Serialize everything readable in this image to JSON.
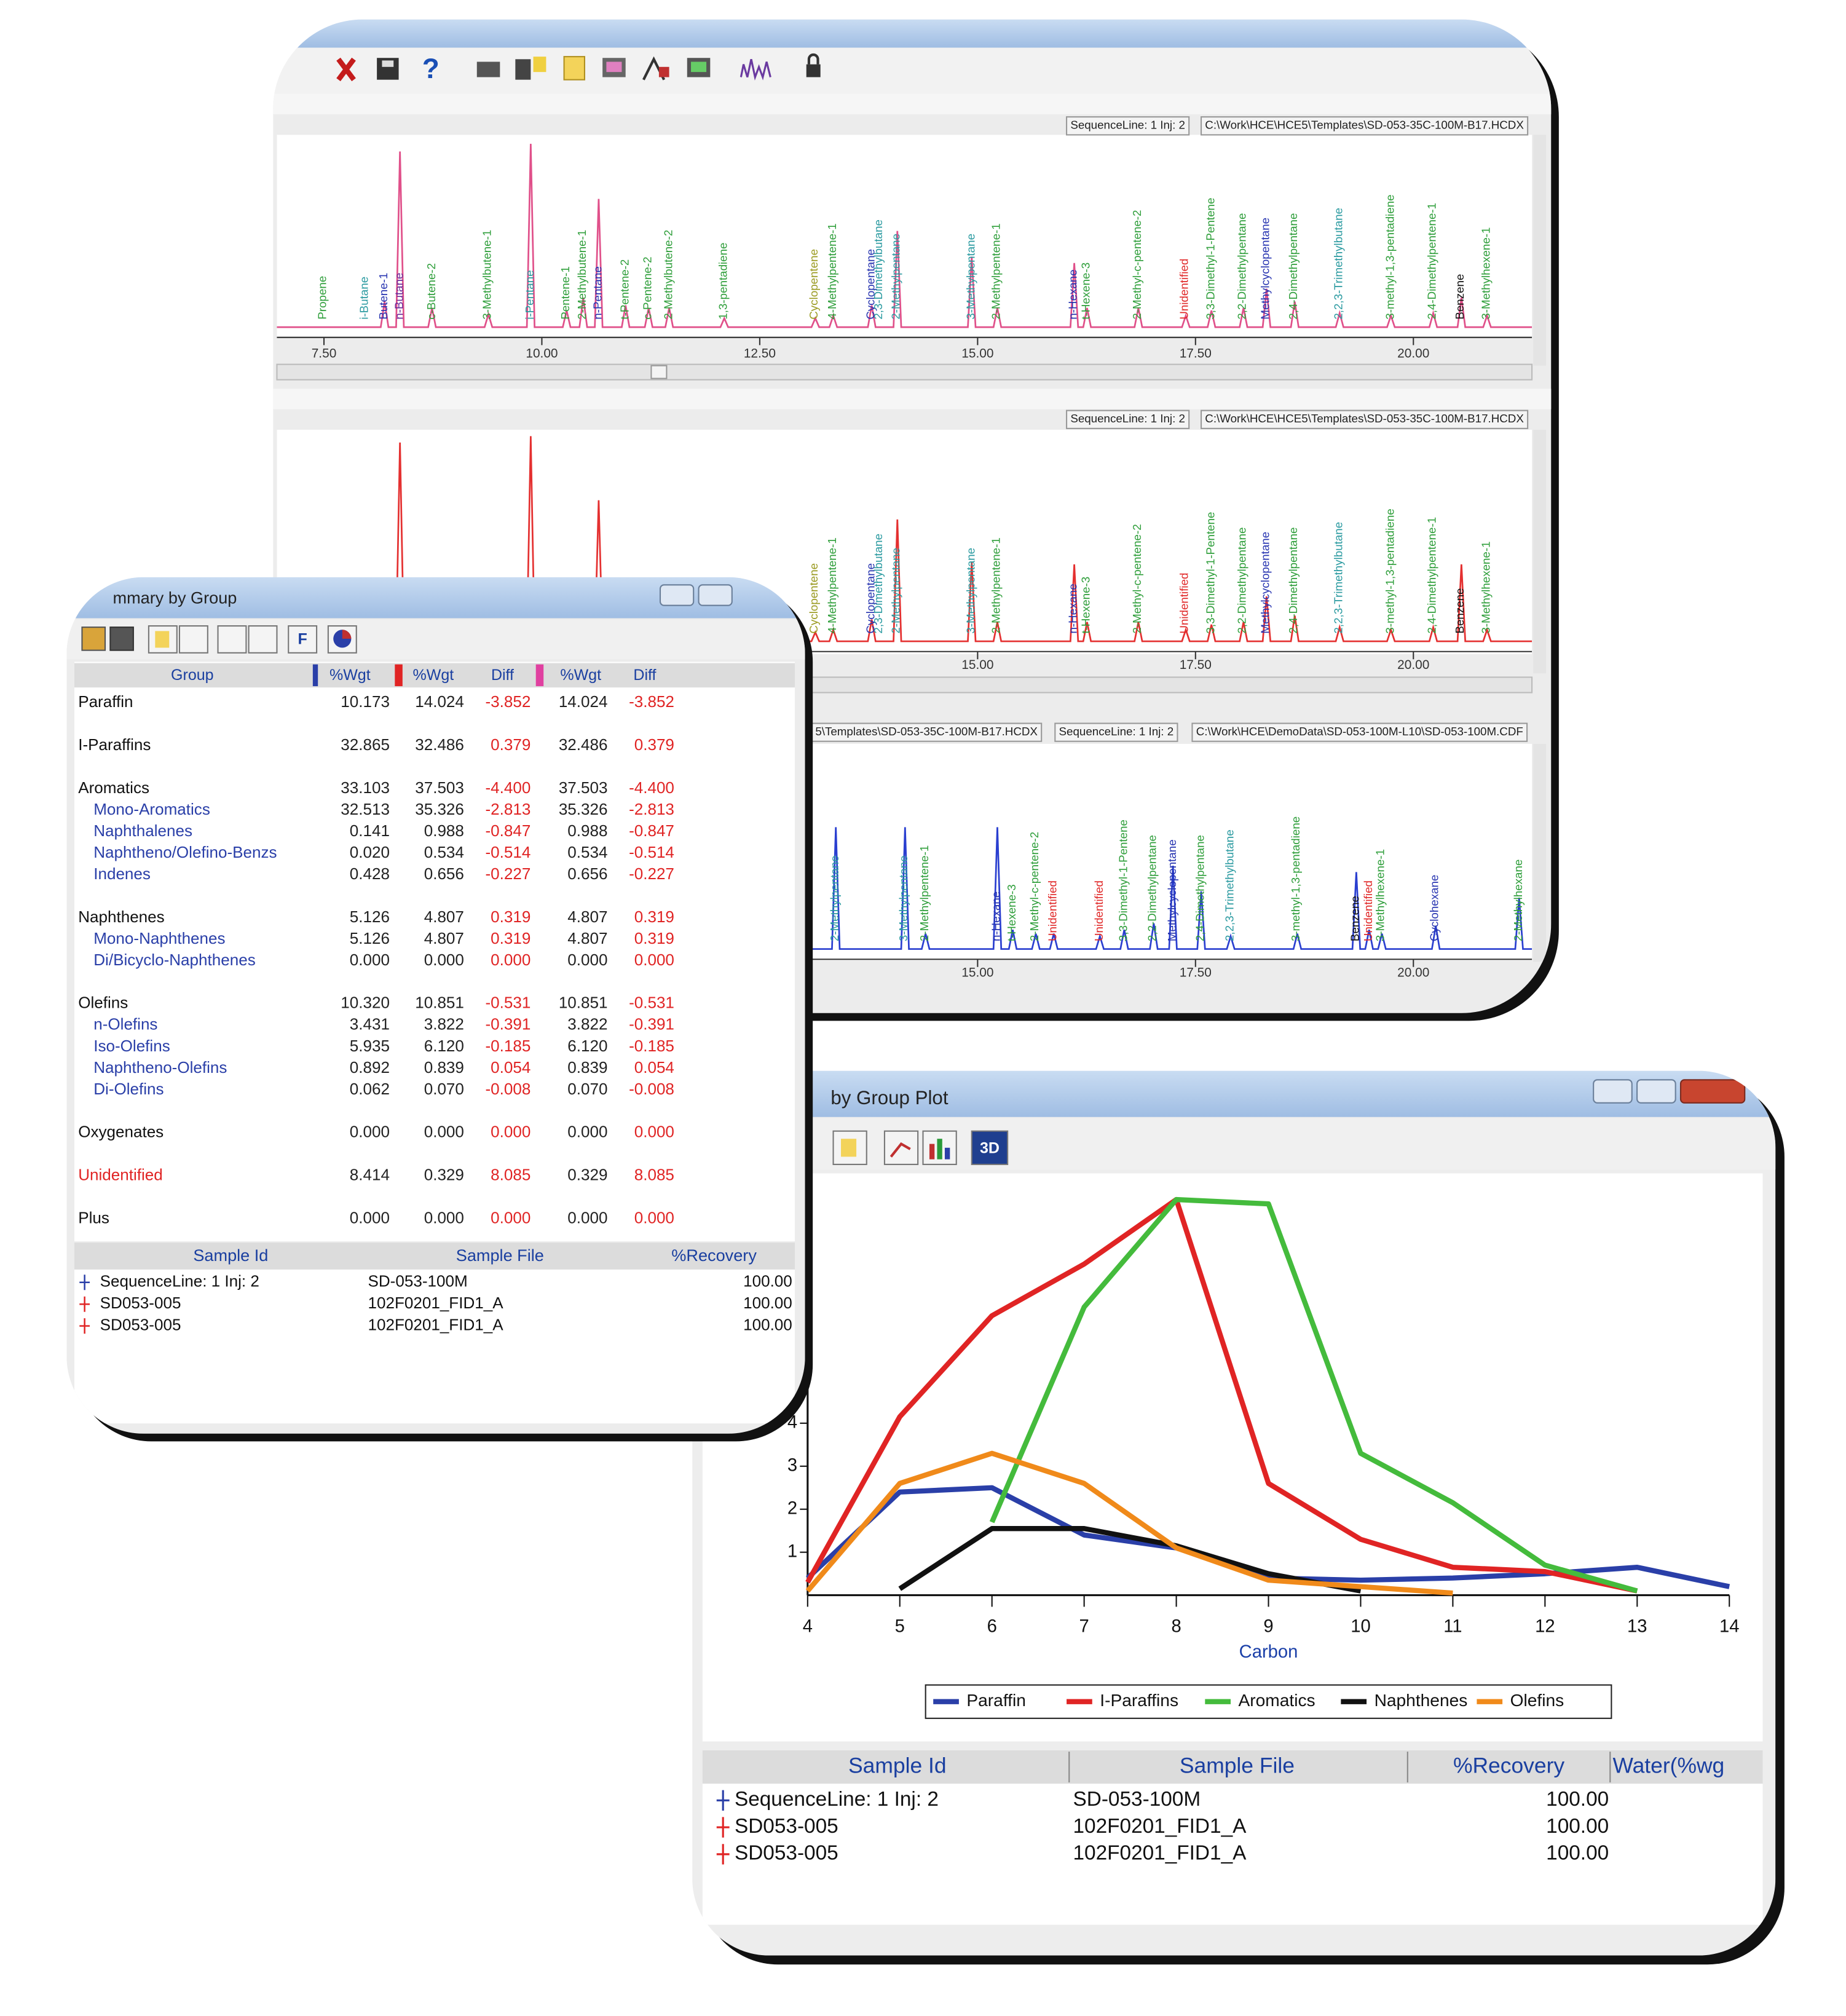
{
  "chromatogram_window": {
    "panels": [
      {
        "header": [
          "SequenceLine: 1  Inj: 2",
          "C:\\Work\\HCE\\HCE5\\Templates\\SD-053-35C-100M-B17.HCDX"
        ],
        "xlim": [
          6.96,
          21.36
        ],
        "xticks": [
          {
            "value": 7.5,
            "label": "7.50"
          },
          {
            "value": 10,
            "label": "10.00"
          },
          {
            "value": 12.5,
            "label": "12.50"
          },
          {
            "value": 15,
            "label": "15.00"
          },
          {
            "value": 17.5,
            "label": "17.50"
          },
          {
            "value": 20,
            "label": "20.00"
          }
        ],
        "peaks": [
          {
            "label": "Propene",
            "rt": 7.49,
            "color": "#2e9e3a"
          },
          {
            "label": "i-Butane",
            "rt": 7.97,
            "color": "#2a9aa0"
          },
          {
            "label": "Butene-1",
            "rt": 8.19,
            "color": "#2633b0"
          },
          {
            "label": "n-Butane",
            "rt": 8.37,
            "color": "#6a2a9a"
          },
          {
            "label": "c-Butene-2",
            "rt": 8.74,
            "color": "#2e9e3a"
          },
          {
            "label": "3-Methylbutene-1",
            "rt": 9.38,
            "color": "#2e9e3a"
          },
          {
            "label": "i-Pentane",
            "rt": 9.87,
            "color": "#2a9aa0"
          },
          {
            "label": "Pentene-1",
            "rt": 10.28,
            "color": "#2e9e3a"
          },
          {
            "label": "2-Methylbutene-1",
            "rt": 10.47,
            "color": "#2e9e3a"
          },
          {
            "label": "n-Pentane",
            "rt": 10.65,
            "color": "#2633b0"
          },
          {
            "label": "t-Pentene-2",
            "rt": 10.96,
            "color": "#2e9e3a"
          },
          {
            "label": "c-Pentene-2",
            "rt": 11.22,
            "color": "#2e9e3a"
          },
          {
            "label": "2-Methylbutene-2",
            "rt": 11.46,
            "color": "#2e9e3a"
          },
          {
            "label": "1,3-pentadiene",
            "rt": 12.09,
            "color": "#2e9e3a"
          },
          {
            "label": "Cyclopentene",
            "rt": 13.13,
            "color": "#9a9a20"
          },
          {
            "label": "4-Methylpentene-1",
            "rt": 13.34,
            "color": "#2e9e3a"
          },
          {
            "label": "Cyclopentane",
            "rt": 13.78,
            "color": "#2633b0"
          },
          {
            "label": "2,3-Dimethylbutane",
            "rt": 13.87,
            "color": "#2a9aa0"
          },
          {
            "label": "2-Methylpentane",
            "rt": 14.07,
            "color": "#2a9aa0"
          },
          {
            "label": "3-Methylpentane",
            "rt": 14.93,
            "color": "#2a9aa0"
          },
          {
            "label": "2-Methylpentene-1",
            "rt": 15.22,
            "color": "#2e9e3a"
          },
          {
            "label": "n-Hexane",
            "rt": 16.1,
            "color": "#2633b0"
          },
          {
            "label": "t-Hexene-3",
            "rt": 16.25,
            "color": "#2e9e3a"
          },
          {
            "label": "2-Methyl-c-pentene-2",
            "rt": 16.84,
            "color": "#2e9e3a"
          },
          {
            "label": "Unidentified",
            "rt": 17.38,
            "color": "#e02828"
          },
          {
            "label": "3,3-Dimethyl-1-Pentene",
            "rt": 17.68,
            "color": "#2e9e3a"
          },
          {
            "label": "2,2-Dimethylpentane",
            "rt": 18.04,
            "color": "#2e9e3a"
          },
          {
            "label": "Methylcyclopentane",
            "rt": 18.31,
            "color": "#2633b0"
          },
          {
            "label": "2,4-Dimethylpentane",
            "rt": 18.63,
            "color": "#2e9e3a"
          },
          {
            "label": "2,2,3-Trimethylbutane",
            "rt": 19.15,
            "color": "#2a9aa0"
          },
          {
            "label": "3-methyl-1,3-pentadiene",
            "rt": 19.74,
            "color": "#2e9e3a"
          },
          {
            "label": "2,4-Dimethylpentene-1",
            "rt": 20.22,
            "color": "#2e9e3a"
          },
          {
            "label": "Benzene",
            "rt": 20.54,
            "color": "#111111"
          },
          {
            "label": "3-Methylhexene-1",
            "rt": 20.84,
            "color": "#2e9e3a"
          }
        ]
      },
      {
        "header": [
          "SequenceLine: 1  Inj: 2",
          "C:\\Work\\HCE\\HCE5\\Templates\\SD-053-35C-100M-B17.HCDX"
        ],
        "xlim": [
          6.96,
          21.36
        ],
        "xticks": [
          {
            "value": 15,
            "label": "15.00"
          },
          {
            "value": 17.5,
            "label": "17.50"
          },
          {
            "value": 20,
            "label": "20.00"
          }
        ],
        "peaks": [
          {
            "label": "Cyclopentene",
            "rt": 13.13,
            "color": "#9a9a20"
          },
          {
            "label": "4-Methylpentene-1",
            "rt": 13.34,
            "color": "#2e9e3a"
          },
          {
            "label": "Cyclopentane",
            "rt": 13.78,
            "color": "#2633b0"
          },
          {
            "label": "2,3-Dimethylbutane",
            "rt": 13.87,
            "color": "#2a9aa0"
          },
          {
            "label": "2-Methylpentane",
            "rt": 14.07,
            "color": "#2a9aa0"
          },
          {
            "label": "3-Methylpentane",
            "rt": 14.93,
            "color": "#2a9aa0"
          },
          {
            "label": "2-Methylpentene-1",
            "rt": 15.22,
            "color": "#2e9e3a"
          },
          {
            "label": "n-Hexane",
            "rt": 16.1,
            "color": "#2633b0"
          },
          {
            "label": "t-Hexene-3",
            "rt": 16.25,
            "color": "#2e9e3a"
          },
          {
            "label": "2-Methyl-c-pentene-2",
            "rt": 16.84,
            "color": "#2e9e3a"
          },
          {
            "label": "Unidentified",
            "rt": 17.38,
            "color": "#e02828"
          },
          {
            "label": "3,3-Dimethyl-1-Pentene",
            "rt": 17.68,
            "color": "#2e9e3a"
          },
          {
            "label": "2,2-Dimethylpentane",
            "rt": 18.04,
            "color": "#2e9e3a"
          },
          {
            "label": "Methylcyclopentane",
            "rt": 18.31,
            "color": "#2633b0"
          },
          {
            "label": "2,4-Dimethylpentane",
            "rt": 18.63,
            "color": "#2e9e3a"
          },
          {
            "label": "2,2,3-Trimethylbutane",
            "rt": 19.15,
            "color": "#2a9aa0"
          },
          {
            "label": "3-methyl-1,3-pentadiene",
            "rt": 19.74,
            "color": "#2e9e3a"
          },
          {
            "label": "2,4-Dimethylpentene-1",
            "rt": 20.22,
            "color": "#2e9e3a"
          },
          {
            "label": "Benzene",
            "rt": 20.54,
            "color": "#111111"
          },
          {
            "label": "3-Methylhexene-1",
            "rt": 20.84,
            "color": "#2e9e3a"
          }
        ]
      },
      {
        "header": [
          "5\\Templates\\SD-053-35C-100M-B17.HCDX",
          "SequenceLine: 1  Inj: 2",
          "C:\\Work\\HCE\\DemoData\\SD-053-100M-L10\\SD-053-100M.CDF"
        ],
        "xlim": [
          6.96,
          21.36
        ],
        "xticks": [
          {
            "value": 15,
            "label": "15.00"
          },
          {
            "value": 17.5,
            "label": "17.50"
          },
          {
            "value": 20,
            "label": "20.00"
          }
        ],
        "peaks": [
          {
            "label": "2-Methylpentane",
            "rt": 13.37,
            "color": "#2a9aa0"
          },
          {
            "label": "3-Methylpentane",
            "rt": 14.16,
            "color": "#2a9aa0"
          },
          {
            "label": "2-Methylpentene-1",
            "rt": 14.4,
            "color": "#2e9e3a"
          },
          {
            "label": "n-Hexane",
            "rt": 15.22,
            "color": "#2633b0"
          },
          {
            "label": "t-Hexene-3",
            "rt": 15.4,
            "color": "#2e9e3a"
          },
          {
            "label": "2-Methyl-c-pentene-2",
            "rt": 15.66,
            "color": "#2e9e3a"
          },
          {
            "label": "Unidentified",
            "rt": 15.87,
            "color": "#e02828"
          },
          {
            "label": "Unidentified",
            "rt": 16.4,
            "color": "#e02828"
          },
          {
            "label": "3,3-Dimethyl-1-Pentene",
            "rt": 16.68,
            "color": "#2e9e3a"
          },
          {
            "label": "2,2-Dimethylpentane",
            "rt": 17.01,
            "color": "#2e9e3a"
          },
          {
            "label": "Methylcyclopentane",
            "rt": 17.24,
            "color": "#2633b0"
          },
          {
            "label": "2,4-Dimethylpentane",
            "rt": 17.56,
            "color": "#2e9e3a"
          },
          {
            "label": "2,2,3-Trimethylbutane",
            "rt": 17.9,
            "color": "#2a9aa0"
          },
          {
            "label": "3-methyl-1,3-pentadiene",
            "rt": 18.66,
            "color": "#2e9e3a"
          },
          {
            "label": "Benzene",
            "rt": 19.34,
            "color": "#111111"
          },
          {
            "label": "Unidentified",
            "rt": 19.49,
            "color": "#e02828"
          },
          {
            "label": "3-Methylhexene-1",
            "rt": 19.63,
            "color": "#2e9e3a"
          },
          {
            "label": "Cyclohexane",
            "rt": 20.25,
            "color": "#2633b0"
          },
          {
            "label": "2-Methylhexane",
            "rt": 21.21,
            "color": "#2e9e3a"
          }
        ]
      }
    ]
  },
  "summary_window": {
    "title": "mmary by Group",
    "toolbar_label": "F",
    "columns": [
      "Group",
      "%Wgt",
      "%Wgt",
      "Diff",
      "%Wgt",
      "Diff"
    ],
    "groups": [
      {
        "name": "Paraffin",
        "values": [
          "10.173",
          "14.024",
          "-3.852",
          "14.024",
          "-3.852"
        ],
        "children": []
      },
      {
        "name": "I-Paraffins",
        "values": [
          "32.865",
          "32.486",
          "0.379",
          "32.486",
          "0.379"
        ],
        "children": []
      },
      {
        "name": "Aromatics",
        "values": [
          "33.103",
          "37.503",
          "-4.400",
          "37.503",
          "-4.400"
        ],
        "children": [
          {
            "name": "Mono-Aromatics",
            "values": [
              "32.513",
              "35.326",
              "-2.813",
              "35.326",
              "-2.813"
            ]
          },
          {
            "name": "Naphthalenes",
            "values": [
              "0.141",
              "0.988",
              "-0.847",
              "0.988",
              "-0.847"
            ]
          },
          {
            "name": "Naphtheno/Olefino-Benzs",
            "values": [
              "0.020",
              "0.534",
              "-0.514",
              "0.534",
              "-0.514"
            ]
          },
          {
            "name": "Indenes",
            "values": [
              "0.428",
              "0.656",
              "-0.227",
              "0.656",
              "-0.227"
            ]
          }
        ]
      },
      {
        "name": "Naphthenes",
        "values": [
          "5.126",
          "4.807",
          "0.319",
          "4.807",
          "0.319"
        ],
        "children": [
          {
            "name": "Mono-Naphthenes",
            "values": [
              "5.126",
              "4.807",
              "0.319",
              "4.807",
              "0.319"
            ]
          },
          {
            "name": "Di/Bicyclo-Naphthenes",
            "values": [
              "0.000",
              "0.000",
              "0.000",
              "0.000",
              "0.000"
            ]
          }
        ]
      },
      {
        "name": "Olefins",
        "values": [
          "10.320",
          "10.851",
          "-0.531",
          "10.851",
          "-0.531"
        ],
        "children": [
          {
            "name": "n-Olefins",
            "values": [
              "3.431",
              "3.822",
              "-0.391",
              "3.822",
              "-0.391"
            ]
          },
          {
            "name": "Iso-Olefins",
            "values": [
              "5.935",
              "6.120",
              "-0.185",
              "6.120",
              "-0.185"
            ]
          },
          {
            "name": "Naphtheno-Olefins",
            "values": [
              "0.892",
              "0.839",
              "0.054",
              "0.839",
              "0.054"
            ]
          },
          {
            "name": "Di-Olefins",
            "values": [
              "0.062",
              "0.070",
              "-0.008",
              "0.070",
              "-0.008"
            ]
          }
        ]
      },
      {
        "name": "Oxygenates",
        "values": [
          "0.000",
          "0.000",
          "0.000",
          "0.000",
          "0.000"
        ],
        "children": []
      },
      {
        "name": "Unidentified",
        "values": [
          "8.414",
          "0.329",
          "8.085",
          "0.329",
          "8.085"
        ],
        "children": []
      },
      {
        "name": "Plus",
        "values": [
          "0.000",
          "0.000",
          "0.000",
          "0.000",
          "0.000"
        ],
        "children": []
      }
    ],
    "sample_columns": [
      "Sample Id",
      "Sample File",
      "%Recovery"
    ],
    "samples": [
      [
        "SequenceLine: 1  Inj: 2",
        "SD-053-100M",
        "100.00"
      ],
      [
        "SD053-005",
        "102F0201_FID1_A",
        "100.00"
      ],
      [
        "SD053-005",
        "102F0201_FID1_A",
        "100.00"
      ]
    ]
  },
  "chart_data": {
    "type": "line",
    "title": "by Group Plot",
    "toolbar_label": "3D",
    "xlabel": "Carbon",
    "x": [
      4,
      5,
      6,
      7,
      8,
      9,
      10,
      11,
      12,
      13,
      14
    ],
    "xlim": [
      4,
      14
    ],
    "xticks": [
      4,
      5,
      6,
      7,
      8,
      9,
      10,
      11,
      12,
      13,
      14
    ],
    "ylim": [
      0,
      9.6
    ],
    "yticks": [
      1,
      2,
      3,
      4
    ],
    "series": [
      {
        "name": "Paraffin",
        "color": "#2a3fa8",
        "values": [
          0.4,
          2.4,
          2.5,
          1.4,
          1.1,
          0.4,
          0.35,
          0.4,
          0.5,
          0.65,
          0.2
        ]
      },
      {
        "name": "I-Paraffins",
        "color": "#e02424",
        "values": [
          0.3,
          4.15,
          6.5,
          7.7,
          9.2,
          2.6,
          1.3,
          0.65,
          0.55,
          0.1,
          null
        ]
      },
      {
        "name": "Aromatics",
        "color": "#44bb3c",
        "values": [
          null,
          null,
          1.7,
          6.7,
          9.2,
          9.1,
          3.3,
          2.15,
          0.7,
          0.1,
          null
        ]
      },
      {
        "name": "Naphthenes",
        "color": "#111111",
        "values": [
          null,
          0.15,
          1.55,
          1.55,
          1.15,
          0.5,
          0.1,
          null,
          null,
          null,
          null
        ]
      },
      {
        "name": "Olefins",
        "color": "#f08a1a",
        "values": [
          0.1,
          2.6,
          3.3,
          2.6,
          1.1,
          0.35,
          0.2,
          0.05,
          null,
          null,
          null
        ]
      }
    ],
    "sample_columns": [
      "Sample Id",
      "Sample File",
      "%Recovery",
      "Water(%wg"
    ],
    "samples": [
      [
        "SequenceLine: 1  Inj: 2",
        "SD-053-100M",
        "100.00"
      ],
      [
        "SD053-005",
        "102F0201_FID1_A",
        "100.00"
      ],
      [
        "SD053-005",
        "102F0201_FID1_A",
        "100.00"
      ]
    ]
  }
}
